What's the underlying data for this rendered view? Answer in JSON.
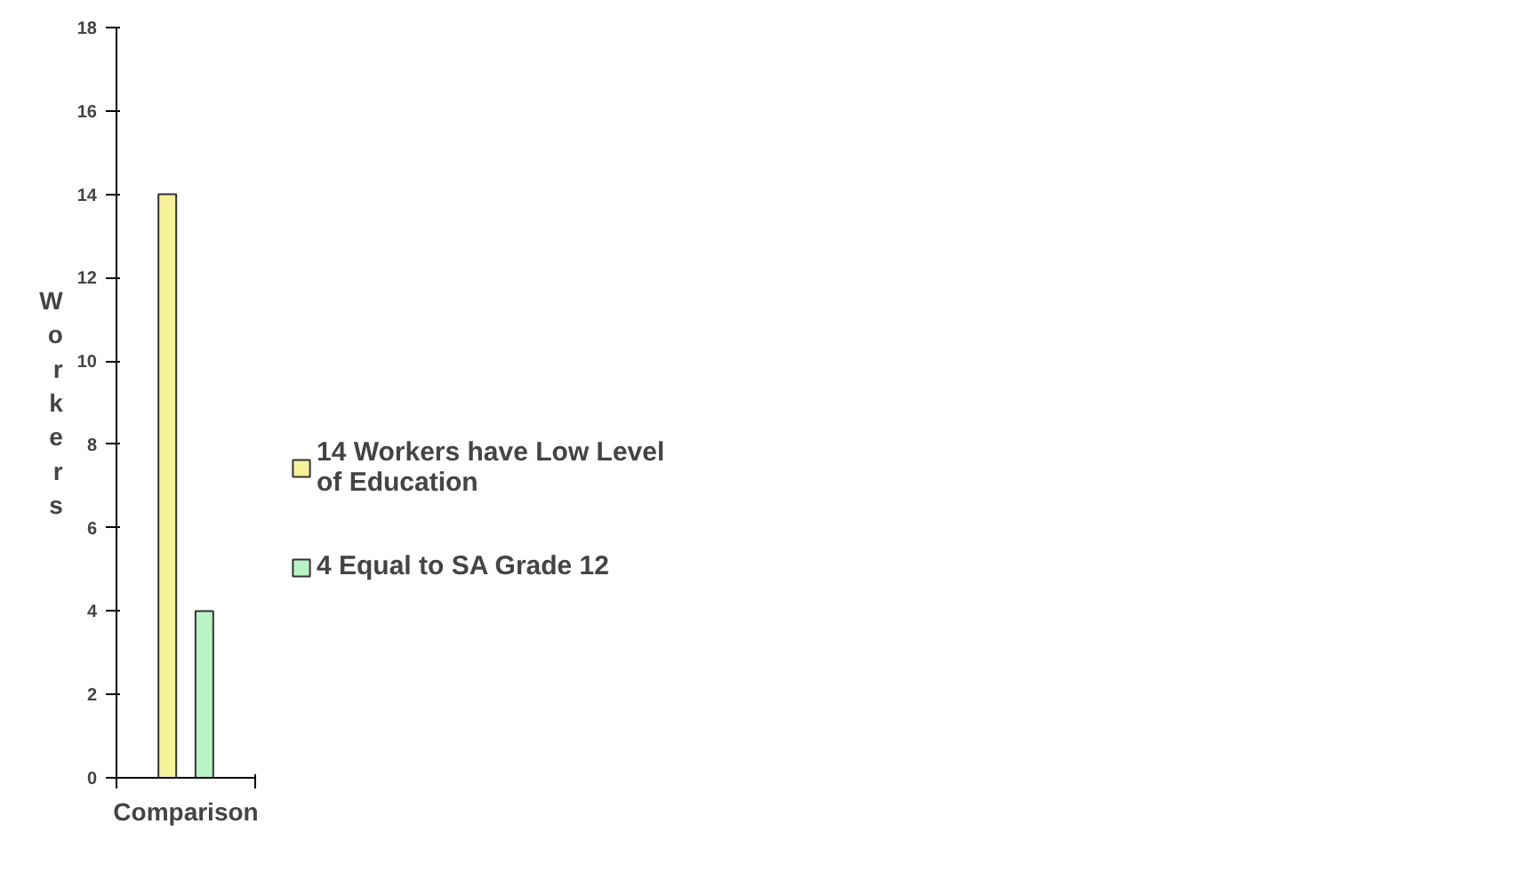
{
  "chart_data": {
    "type": "bar",
    "categories": [
      null
    ],
    "xlabel": "Comparison",
    "ylabel": "Workers",
    "ylim": [
      0,
      18
    ],
    "yticks": [
      0,
      2,
      4,
      6,
      8,
      10,
      12,
      14,
      16,
      18
    ],
    "legend": "right",
    "grid": false,
    "series": [
      {
        "name": "14 Workers have Low Level of Education",
        "color": "#f5f29a",
        "values": [
          14
        ]
      },
      {
        "name": "4 Equal to SA Grade 12",
        "color": "#b8f5c4",
        "values": [
          4
        ]
      }
    ]
  }
}
